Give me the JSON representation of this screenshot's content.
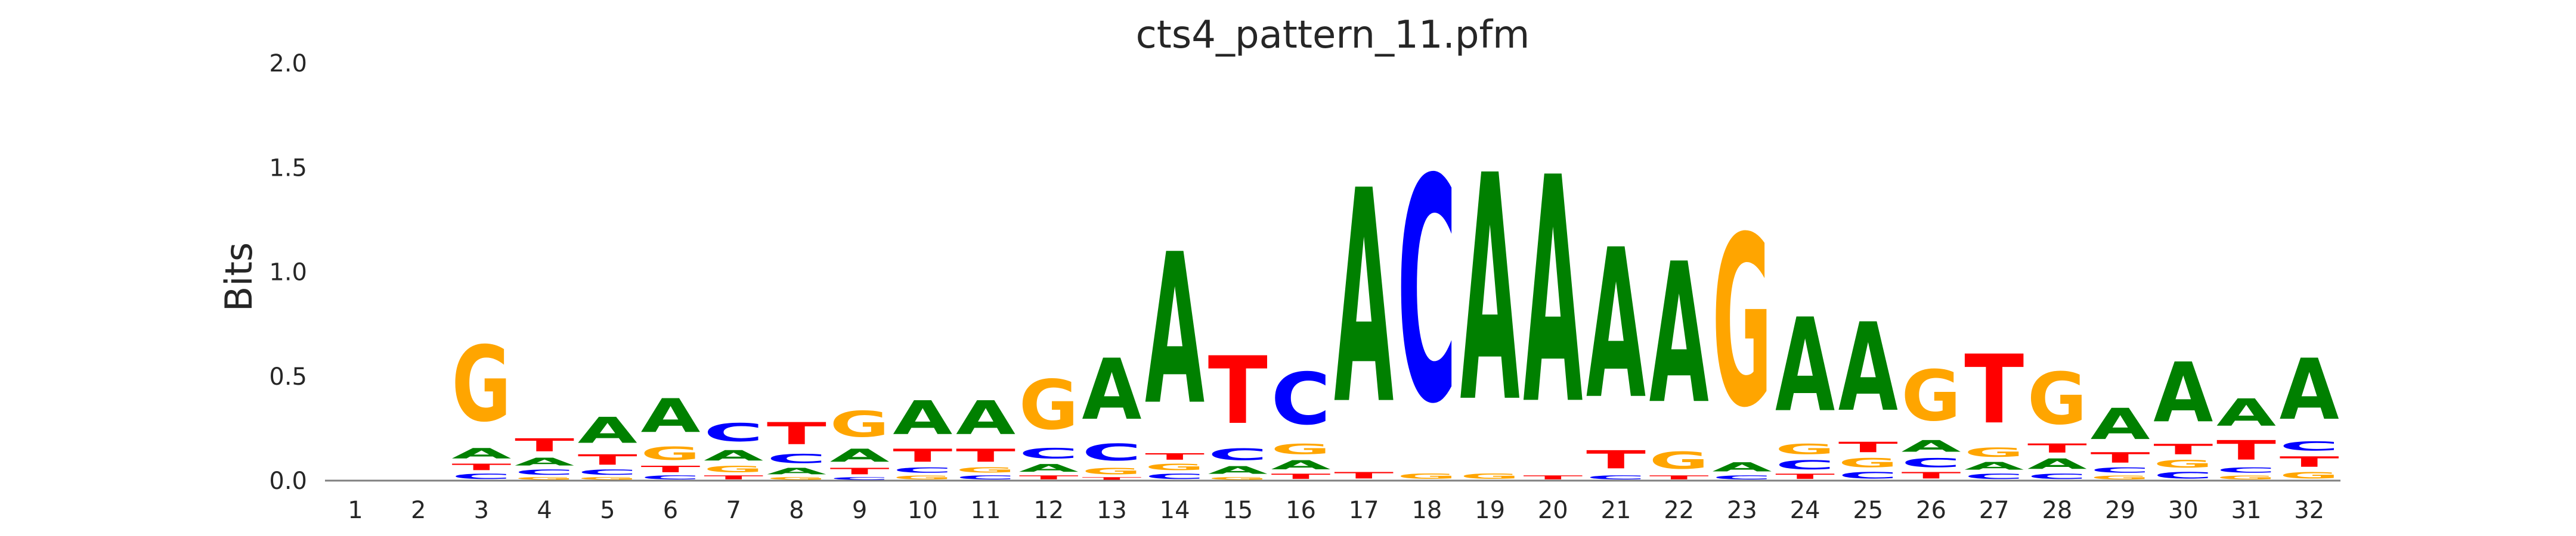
{
  "chart_data": {
    "type": "sequence-logo",
    "title": "cts4_pattern_11.pfm",
    "xlabel": "",
    "ylabel": "Bits",
    "ylim": [
      0,
      2.0
    ],
    "yticks": [
      "0.0",
      "0.5",
      "1.0",
      "1.5",
      "2.0"
    ],
    "ytick_values": [
      0,
      0.5,
      1.0,
      1.5,
      2.0
    ],
    "grid": false,
    "colors": {
      "A": "#008000",
      "C": "#0000ff",
      "G": "#ffa500",
      "T": "#ff0000"
    },
    "positions": [
      {
        "pos": "1",
        "stack": []
      },
      {
        "pos": "2",
        "stack": []
      },
      {
        "pos": "3",
        "stack": [
          [
            "C",
            0.04
          ],
          [
            "T",
            0.05
          ],
          [
            "A",
            0.08
          ],
          [
            "G",
            0.58
          ]
        ]
      },
      {
        "pos": "4",
        "stack": [
          [
            "G",
            0.02
          ],
          [
            "C",
            0.04
          ],
          [
            "A",
            0.06
          ],
          [
            "T",
            0.1
          ]
        ]
      },
      {
        "pos": "5",
        "stack": [
          [
            "G",
            0.02
          ],
          [
            "C",
            0.04
          ],
          [
            "T",
            0.08
          ],
          [
            "A",
            0.2
          ]
        ]
      },
      {
        "pos": "6",
        "stack": [
          [
            "C",
            0.03
          ],
          [
            "T",
            0.05
          ],
          [
            "G",
            0.1
          ],
          [
            "A",
            0.26
          ]
        ]
      },
      {
        "pos": "7",
        "stack": [
          [
            "T",
            0.03
          ],
          [
            "G",
            0.05
          ],
          [
            "A",
            0.08
          ],
          [
            "C",
            0.14
          ]
        ]
      },
      {
        "pos": "8",
        "stack": [
          [
            "G",
            0.02
          ],
          [
            "A",
            0.05
          ],
          [
            "C",
            0.07
          ],
          [
            "T",
            0.17
          ]
        ]
      },
      {
        "pos": "9",
        "stack": [
          [
            "C",
            0.02
          ],
          [
            "T",
            0.05
          ],
          [
            "A",
            0.1
          ],
          [
            "G",
            0.2
          ]
        ]
      },
      {
        "pos": "10",
        "stack": [
          [
            "G",
            0.03
          ],
          [
            "C",
            0.04
          ],
          [
            "T",
            0.1
          ],
          [
            "A",
            0.26
          ]
        ]
      },
      {
        "pos": "11",
        "stack": [
          [
            "C",
            0.03
          ],
          [
            "G",
            0.04
          ],
          [
            "T",
            0.1
          ],
          [
            "A",
            0.26
          ]
        ]
      },
      {
        "pos": "12",
        "stack": [
          [
            "T",
            0.03
          ],
          [
            "A",
            0.06
          ],
          [
            "C",
            0.08
          ],
          [
            "G",
            0.38
          ]
        ]
      },
      {
        "pos": "13",
        "stack": [
          [
            "T",
            0.02
          ],
          [
            "G",
            0.05
          ],
          [
            "C",
            0.13
          ],
          [
            "A",
            0.47
          ]
        ]
      },
      {
        "pos": "14",
        "stack": [
          [
            "C",
            0.04
          ],
          [
            "G",
            0.05
          ],
          [
            "T",
            0.05
          ],
          [
            "A",
            1.16
          ]
        ]
      },
      {
        "pos": "15",
        "stack": [
          [
            "G",
            0.02
          ],
          [
            "A",
            0.06
          ],
          [
            "C",
            0.09
          ],
          [
            "T",
            0.52
          ]
        ]
      },
      {
        "pos": "16",
        "stack": [
          [
            "T",
            0.04
          ],
          [
            "A",
            0.07
          ],
          [
            "G",
            0.08
          ],
          [
            "C",
            0.4
          ]
        ]
      },
      {
        "pos": "17",
        "stack": [
          [
            "T",
            0.05
          ],
          [
            "A",
            1.64
          ]
        ]
      },
      {
        "pos": "18",
        "stack": [
          [
            "G",
            0.04
          ],
          [
            "C",
            1.72
          ]
        ]
      },
      {
        "pos": "19",
        "stack": [
          [
            "G",
            0.04
          ],
          [
            "A",
            1.74
          ]
        ]
      },
      {
        "pos": "20",
        "stack": [
          [
            "T",
            0.03
          ],
          [
            "A",
            1.74
          ]
        ]
      },
      {
        "pos": "21",
        "stack": [
          [
            "C",
            0.03
          ],
          [
            "T",
            0.14
          ],
          [
            "A",
            1.15
          ]
        ]
      },
      {
        "pos": "22",
        "stack": [
          [
            "T",
            0.03
          ],
          [
            "G",
            0.13
          ],
          [
            "A",
            1.08
          ]
        ]
      },
      {
        "pos": "23",
        "stack": [
          [
            "C",
            0.03
          ],
          [
            "A",
            0.07
          ],
          [
            "G",
            1.31
          ]
        ]
      },
      {
        "pos": "24",
        "stack": [
          [
            "T",
            0.04
          ],
          [
            "C",
            0.07
          ],
          [
            "G",
            0.08
          ],
          [
            "A",
            0.72
          ]
        ]
      },
      {
        "pos": "25",
        "stack": [
          [
            "C",
            0.05
          ],
          [
            "G",
            0.07
          ],
          [
            "T",
            0.08
          ],
          [
            "A",
            0.68
          ]
        ]
      },
      {
        "pos": "26",
        "stack": [
          [
            "T",
            0.05
          ],
          [
            "C",
            0.07
          ],
          [
            "A",
            0.09
          ],
          [
            "G",
            0.39
          ]
        ]
      },
      {
        "pos": "27",
        "stack": [
          [
            "C",
            0.04
          ],
          [
            "A",
            0.06
          ],
          [
            "G",
            0.07
          ],
          [
            "T",
            0.53
          ]
        ]
      },
      {
        "pos": "28",
        "stack": [
          [
            "C",
            0.04
          ],
          [
            "A",
            0.08
          ],
          [
            "T",
            0.07
          ],
          [
            "G",
            0.4
          ]
        ]
      },
      {
        "pos": "29",
        "stack": [
          [
            "G",
            0.03
          ],
          [
            "C",
            0.04
          ],
          [
            "T",
            0.08
          ],
          [
            "A",
            0.24
          ]
        ]
      },
      {
        "pos": "30",
        "stack": [
          [
            "C",
            0.05
          ],
          [
            "G",
            0.06
          ],
          [
            "T",
            0.08
          ],
          [
            "A",
            0.46
          ]
        ]
      },
      {
        "pos": "31",
        "stack": [
          [
            "G",
            0.03
          ],
          [
            "C",
            0.04
          ],
          [
            "T",
            0.15
          ],
          [
            "A",
            0.21
          ]
        ]
      },
      {
        "pos": "32",
        "stack": [
          [
            "G",
            0.05
          ],
          [
            "T",
            0.08
          ],
          [
            "C",
            0.07
          ],
          [
            "A",
            0.47
          ]
        ]
      }
    ]
  }
}
